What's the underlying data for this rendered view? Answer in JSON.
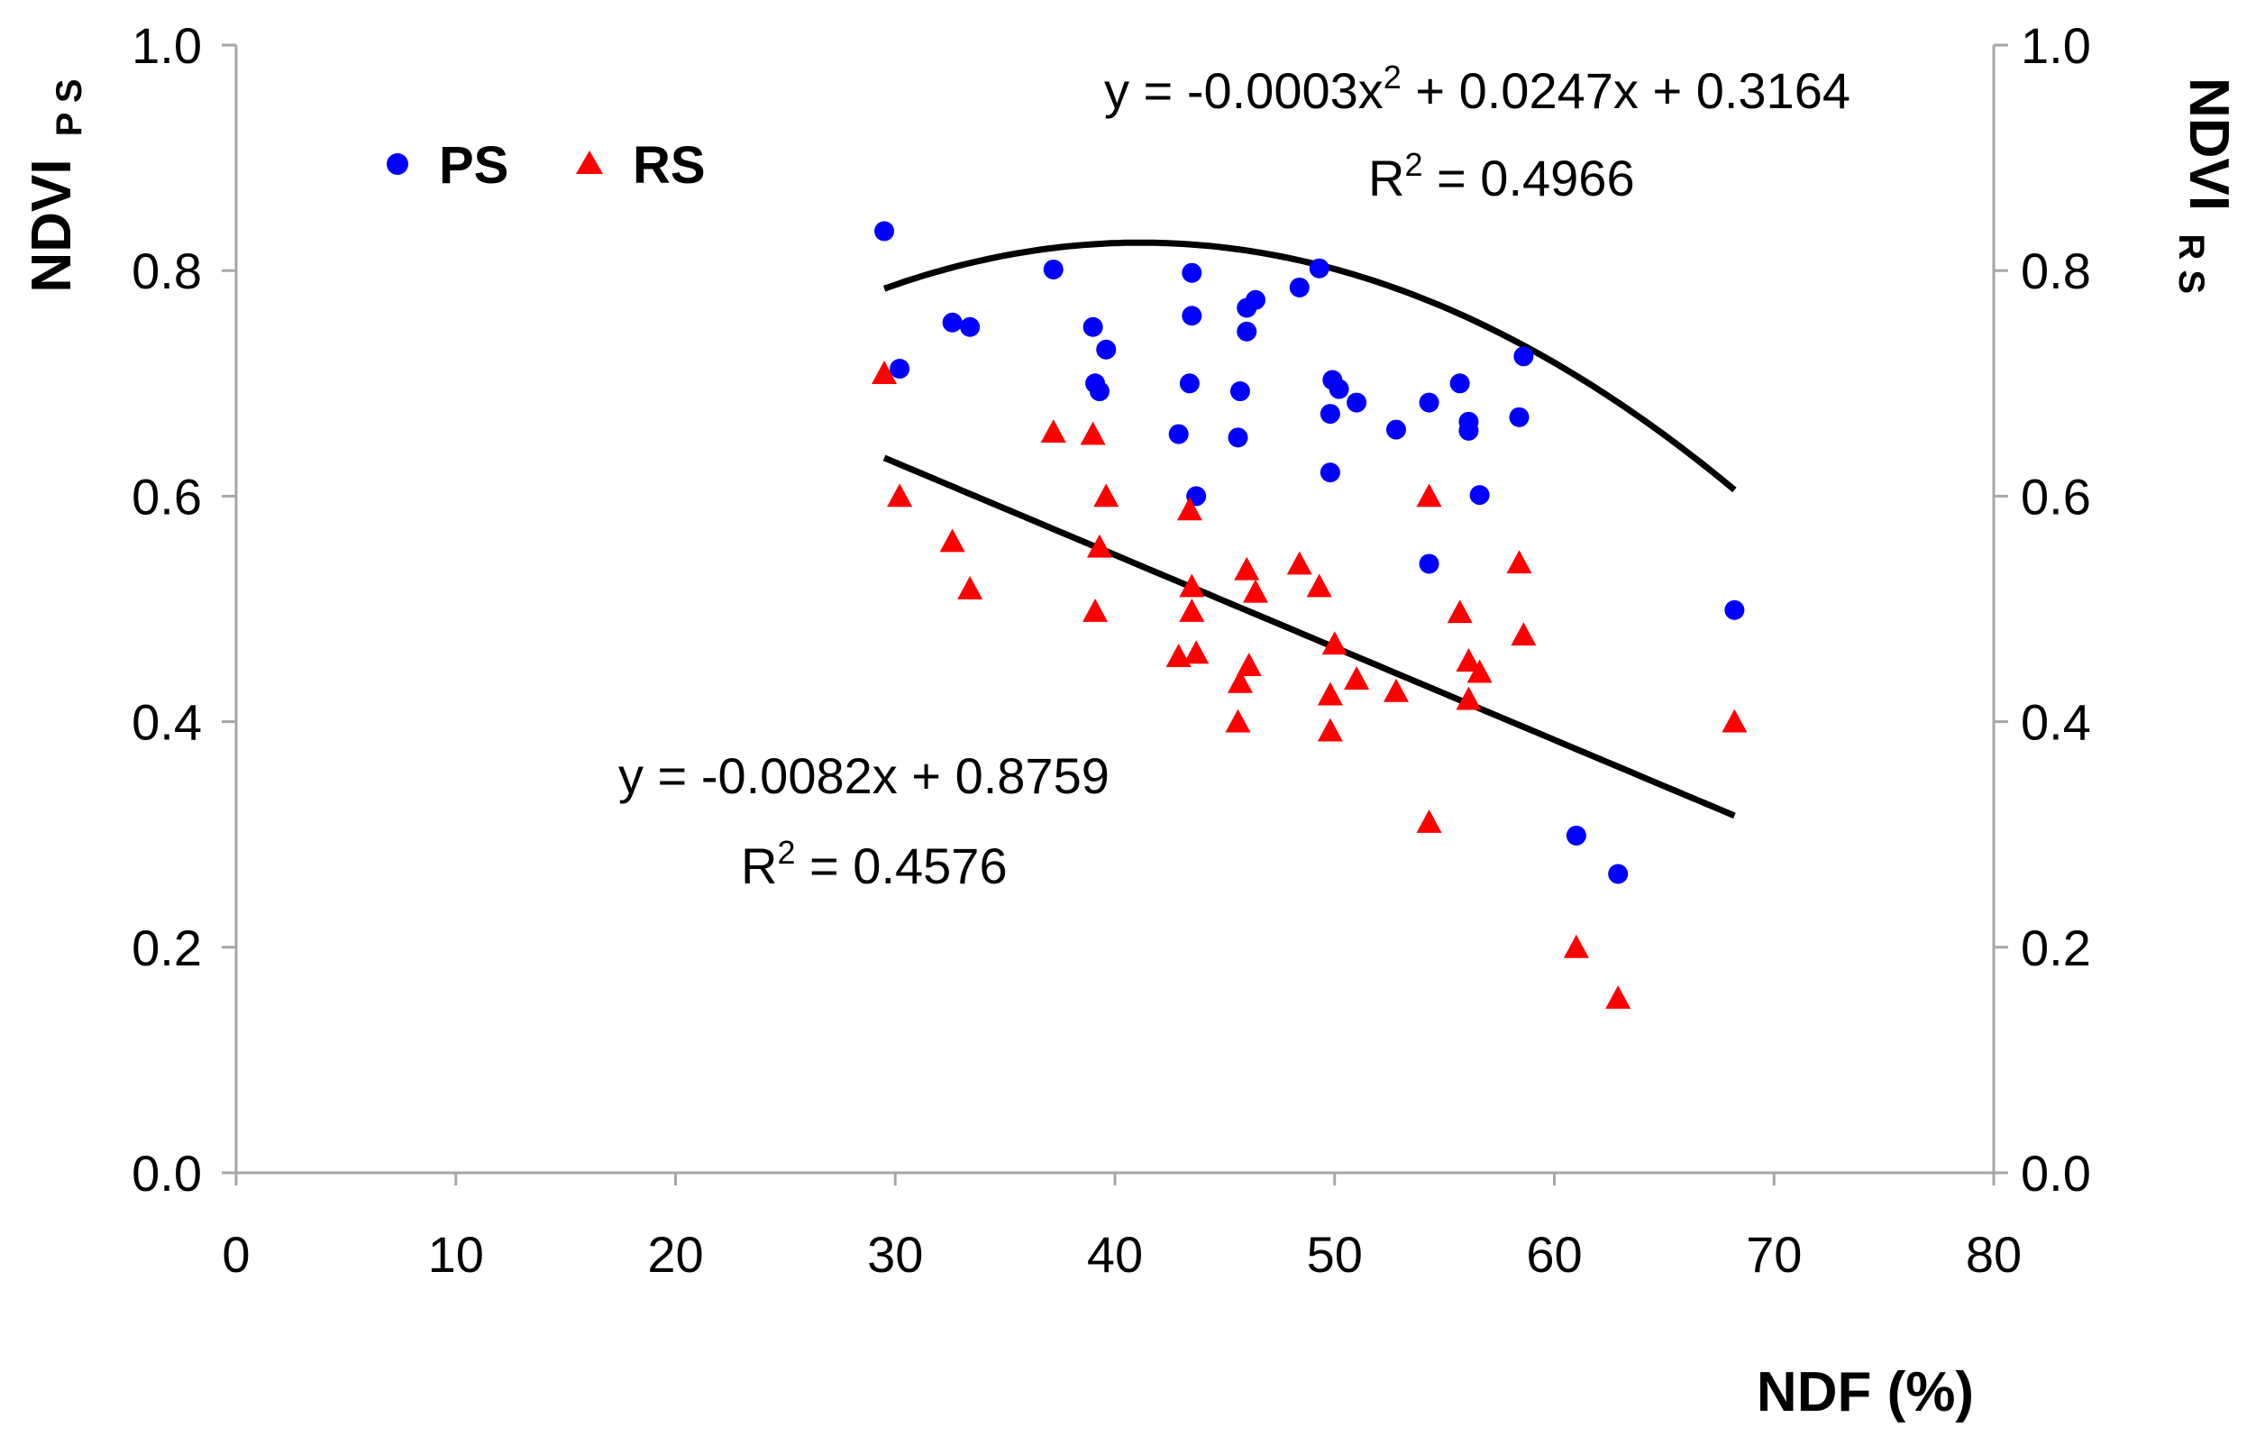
{
  "chart_data": {
    "type": "scatter",
    "title": "",
    "xlabel": "NDF (%)",
    "ylabel_left": {
      "main": "NDVI",
      "sub": "P S"
    },
    "ylabel_right": {
      "main": "NDVI",
      "sub": "R S"
    },
    "xlim": [
      0,
      80
    ],
    "ylim": [
      0.0,
      1.0
    ],
    "xticks": [
      "0",
      "10",
      "20",
      "30",
      "40",
      "50",
      "60",
      "70",
      "80"
    ],
    "yticks": [
      "0.0",
      "0.2",
      "0.4",
      "0.6",
      "0.8",
      "1.0"
    ],
    "grid": false,
    "legend": {
      "placement": "top-left",
      "entries": [
        "PS",
        "RS"
      ]
    },
    "series": [
      {
        "name": "PS",
        "marker": "circle",
        "color": "#0000ff",
        "points": [
          [
            29.5,
            0.835
          ],
          [
            30.2,
            0.713
          ],
          [
            32.6,
            0.754
          ],
          [
            33.4,
            0.75
          ],
          [
            37.2,
            0.801
          ],
          [
            39.0,
            0.75
          ],
          [
            39.1,
            0.7
          ],
          [
            39.3,
            0.693
          ],
          [
            39.6,
            0.73
          ],
          [
            42.9,
            0.655
          ],
          [
            43.4,
            0.7
          ],
          [
            43.5,
            0.798
          ],
          [
            43.5,
            0.76
          ],
          [
            43.7,
            0.6
          ],
          [
            45.6,
            0.652
          ],
          [
            45.7,
            0.693
          ],
          [
            46.0,
            0.767
          ],
          [
            46.0,
            0.746
          ],
          [
            46.4,
            0.774
          ],
          [
            48.4,
            0.785
          ],
          [
            49.3,
            0.802
          ],
          [
            49.8,
            0.673
          ],
          [
            49.8,
            0.621
          ],
          [
            49.9,
            0.703
          ],
          [
            50.2,
            0.695
          ],
          [
            51.0,
            0.683
          ],
          [
            52.8,
            0.659
          ],
          [
            54.3,
            0.683
          ],
          [
            54.3,
            0.54
          ],
          [
            55.7,
            0.7
          ],
          [
            56.1,
            0.666
          ],
          [
            56.1,
            0.658
          ],
          [
            56.6,
            0.601
          ],
          [
            58.4,
            0.67
          ],
          [
            58.6,
            0.724
          ],
          [
            61.0,
            0.299
          ],
          [
            62.9,
            0.265
          ],
          [
            68.2,
            0.499
          ]
        ]
      },
      {
        "name": "RS",
        "marker": "triangle",
        "color": "#ff0000",
        "points": [
          [
            29.5,
            0.709
          ],
          [
            30.2,
            0.6
          ],
          [
            32.6,
            0.56
          ],
          [
            33.4,
            0.518
          ],
          [
            37.2,
            0.657
          ],
          [
            39.0,
            0.655
          ],
          [
            39.1,
            0.498
          ],
          [
            39.3,
            0.555
          ],
          [
            39.6,
            0.6
          ],
          [
            42.9,
            0.458
          ],
          [
            43.4,
            0.588
          ],
          [
            43.5,
            0.52
          ],
          [
            43.5,
            0.498
          ],
          [
            43.7,
            0.461
          ],
          [
            45.6,
            0.4
          ],
          [
            45.7,
            0.435
          ],
          [
            46.0,
            0.535
          ],
          [
            46.1,
            0.45
          ],
          [
            46.4,
            0.515
          ],
          [
            48.4,
            0.54
          ],
          [
            49.3,
            0.52
          ],
          [
            49.8,
            0.392
          ],
          [
            49.8,
            0.424
          ],
          [
            50.0,
            0.469
          ],
          [
            51.0,
            0.438
          ],
          [
            52.8,
            0.427
          ],
          [
            54.3,
            0.6
          ],
          [
            54.3,
            0.311
          ],
          [
            55.7,
            0.497
          ],
          [
            56.1,
            0.454
          ],
          [
            56.1,
            0.42
          ],
          [
            56.6,
            0.444
          ],
          [
            58.4,
            0.541
          ],
          [
            58.6,
            0.477
          ],
          [
            61.0,
            0.2
          ],
          [
            62.9,
            0.155
          ],
          [
            68.2,
            0.4
          ]
        ]
      }
    ],
    "trendlines": [
      {
        "name": "PS-fit",
        "kind": "polynomial",
        "coefficients": [
          0.3164,
          0.0247,
          -0.0003
        ],
        "x_range": [
          29.5,
          68.2
        ],
        "color": "#000000"
      },
      {
        "name": "RS-fit",
        "kind": "linear",
        "coefficients": [
          0.8759,
          -0.0082
        ],
        "x_range": [
          29.5,
          68.2
        ],
        "color": "#000000"
      }
    ],
    "annotations": {
      "ps_equation": {
        "prefix": "y = -0.0003x",
        "sup": "2",
        "suffix": " + 0.0247x + 0.3164"
      },
      "ps_r2": {
        "prefix": "R",
        "sup": "2",
        "suffix": " = 0.4966"
      },
      "rs_equation": "y = -0.0082x + 0.8759",
      "rs_r2": {
        "prefix": "R",
        "sup": "2",
        "suffix": " = 0.4576"
      }
    }
  }
}
